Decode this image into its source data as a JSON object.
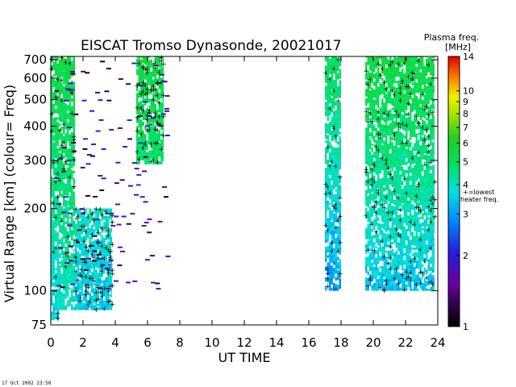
{
  "chart_data": {
    "type": "heatmap",
    "title": "EISCAT Tromso Dynasonde,  20021017",
    "xlabel": "UT TIME",
    "ylabel": "Virtual Range [km]   (colour= Freq)",
    "x_ticks": [
      "0",
      "2",
      "4",
      "6",
      "8",
      "10",
      "12",
      "14",
      "16",
      "18",
      "20",
      "22",
      "24"
    ],
    "xlim": [
      0,
      24
    ],
    "y_ticks": [
      75,
      100,
      200,
      300,
      400,
      500,
      600,
      700
    ],
    "ylim": [
      75,
      720
    ],
    "y_scale": "log",
    "colorbar": {
      "title_line1": "Plasma freq.",
      "title_line2": "[MHz]",
      "ticks": [
        "1",
        "2",
        "3",
        "4",
        "5",
        "6",
        "7",
        "8",
        "9",
        "10",
        "14"
      ],
      "range": [
        1,
        14
      ],
      "scale": "log",
      "marker_note_line1": "+=lowest",
      "marker_note_line2": "heater freq."
    },
    "data_columns": [
      {
        "t_start": 0.0,
        "t_end": 0.5,
        "h_min": 78,
        "h_max": 720,
        "f_low": 2.5,
        "f_high": 5.5
      },
      {
        "t_start": 0.5,
        "t_end": 1.5,
        "h_min": 85,
        "h_max": 720,
        "f_low": 3.0,
        "f_high": 5.5
      },
      {
        "t_start": 1.5,
        "t_end": 3.8,
        "h_min": 85,
        "h_max": 200,
        "f_low": 2.5,
        "f_high": 5.0
      },
      {
        "t_start": 5.3,
        "t_end": 7.0,
        "h_min": 290,
        "h_max": 720,
        "f_low": 3.0,
        "f_high": 5.5
      },
      {
        "t_start": 17.0,
        "t_end": 18.0,
        "h_min": 100,
        "h_max": 720,
        "f_low": 1.5,
        "f_high": 5.0
      },
      {
        "t_start": 19.5,
        "t_end": 23.8,
        "h_min": 100,
        "h_max": 720,
        "f_low": 1.8,
        "f_high": 5.5
      }
    ],
    "grid": false,
    "legend": "colorbar right"
  },
  "footer_timestamp": "17 Oct 2002 23:50"
}
